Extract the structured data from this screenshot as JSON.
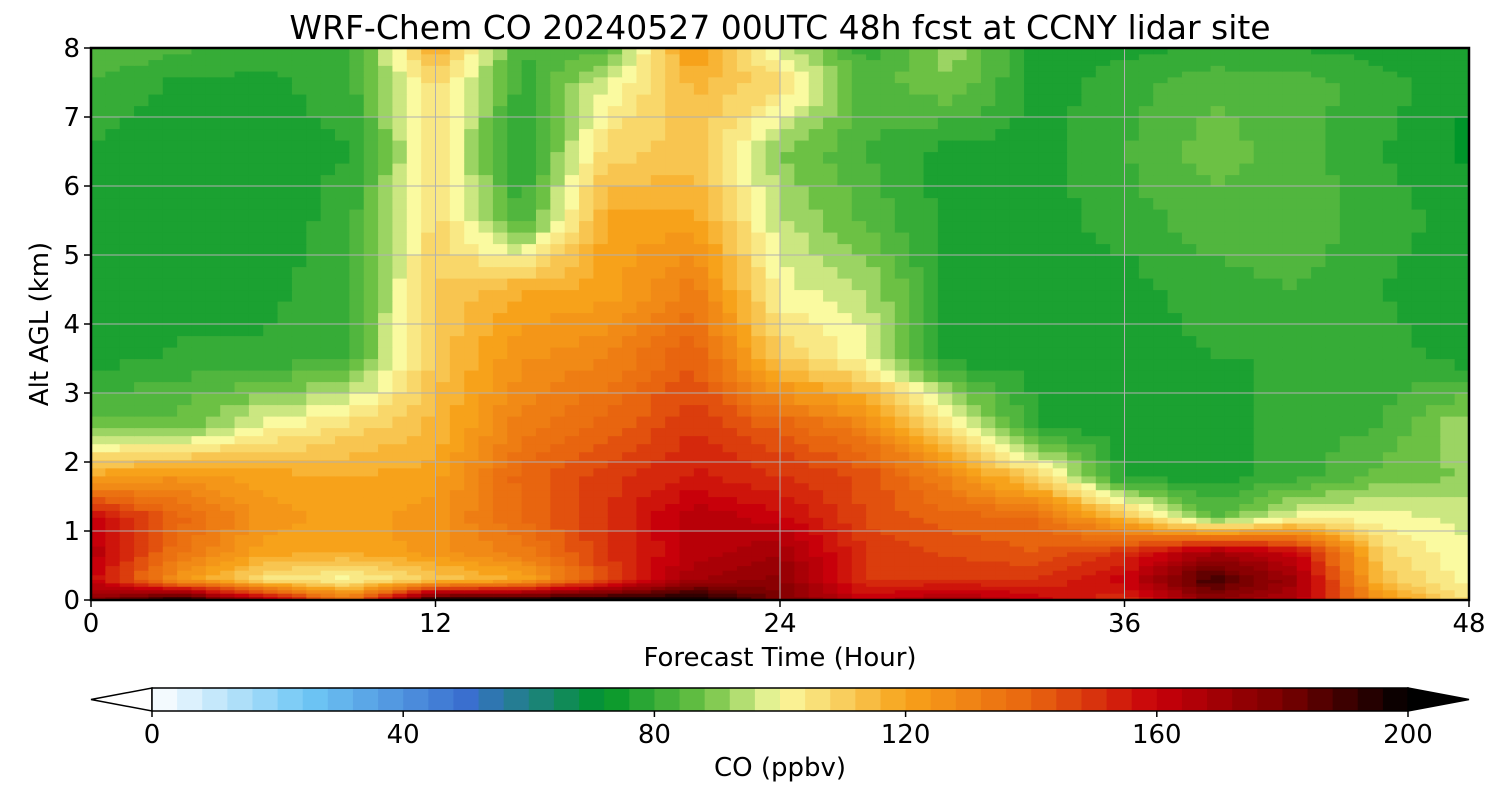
{
  "chart_data": {
    "type": "heatmap",
    "title": "WRF-Chem CO  20240527 00UTC 48h fcst at CCNY lidar site",
    "xlabel": "Forecast Time (Hour)",
    "ylabel": "Alt AGL (km)",
    "xlim": [
      0,
      48
    ],
    "ylim": [
      0,
      8
    ],
    "x_ticks": [
      0,
      12,
      24,
      36,
      48
    ],
    "y_ticks": [
      0,
      1,
      2,
      3,
      4,
      5,
      6,
      7,
      8
    ],
    "grid": true,
    "x_grid": [
      0,
      3,
      6,
      9,
      12,
      15,
      18,
      21,
      24,
      27,
      30,
      33,
      36,
      39,
      42,
      45,
      48
    ],
    "y_grid": [
      0,
      0.3,
      0.7,
      1.2,
      1.8,
      2.5,
      3.5,
      4.5,
      5.5,
      6.5,
      7.5,
      8
    ],
    "values": [
      [
        175,
        200,
        170,
        135,
        200,
        200,
        200,
        200,
        180,
        160,
        170,
        160,
        150,
        175,
        165,
        125,
        105
      ],
      [
        160,
        125,
        105,
        100,
        110,
        118,
        145,
        170,
        175,
        150,
        150,
        150,
        160,
        190,
        170,
        112,
        100
      ],
      [
        165,
        135,
        120,
        118,
        124,
        132,
        150,
        163,
        170,
        150,
        145,
        142,
        150,
        170,
        160,
        108,
        98
      ],
      [
        160,
        140,
        125,
        120,
        125,
        138,
        150,
        165,
        160,
        145,
        140,
        138,
        115,
        85,
        100,
        100,
        97
      ],
      [
        120,
        125,
        120,
        118,
        120,
        140,
        148,
        155,
        150,
        145,
        128,
        108,
        76,
        76,
        80,
        88,
        90
      ],
      [
        88,
        88,
        100,
        108,
        115,
        132,
        140,
        150,
        142,
        130,
        105,
        78,
        76,
        76,
        80,
        82,
        95
      ],
      [
        76,
        79,
        79,
        82,
        112,
        125,
        130,
        142,
        110,
        100,
        76,
        76,
        76,
        78,
        78,
        80,
        76
      ],
      [
        76,
        75,
        76,
        82,
        110,
        118,
        120,
        132,
        100,
        94,
        76,
        76,
        76,
        80,
        82,
        78,
        75
      ],
      [
        75,
        74,
        75,
        80,
        108,
        82,
        120,
        120,
        95,
        85,
        76,
        76,
        80,
        84,
        85,
        80,
        76
      ],
      [
        77,
        75,
        76,
        78,
        105,
        76,
        108,
        112,
        90,
        82,
        76,
        76,
        82,
        88,
        84,
        78,
        73
      ],
      [
        82,
        77,
        77,
        80,
        108,
        80,
        98,
        115,
        108,
        84,
        90,
        76,
        80,
        85,
        84,
        80,
        74
      ],
      [
        86,
        83,
        80,
        80,
        118,
        82,
        84,
        125,
        96,
        80,
        92,
        76,
        77,
        78,
        78,
        76,
        74
      ]
    ],
    "colorbar": {
      "label": "CO  (ppbv)",
      "min": 0,
      "max": 200,
      "ticks": [
        0,
        40,
        80,
        120,
        160,
        200
      ],
      "extend": "both",
      "stops": [
        {
          "value": 0,
          "color": "#ffffff"
        },
        {
          "value": 25,
          "color": "#6ec6f5"
        },
        {
          "value": 50,
          "color": "#3a6fcf"
        },
        {
          "value": 72,
          "color": "#00962a"
        },
        {
          "value": 88,
          "color": "#6cc144"
        },
        {
          "value": 100,
          "color": "#fafaa0"
        },
        {
          "value": 120,
          "color": "#f7a21a"
        },
        {
          "value": 140,
          "color": "#e8650f"
        },
        {
          "value": 160,
          "color": "#c8000a"
        },
        {
          "value": 180,
          "color": "#7a0000"
        },
        {
          "value": 200,
          "color": "#000000"
        }
      ]
    }
  }
}
